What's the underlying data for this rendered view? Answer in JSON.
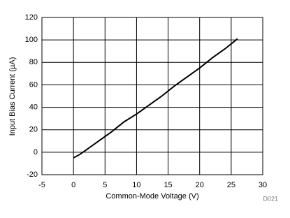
{
  "chart_data": {
    "type": "line",
    "xlabel": "Common-Mode Voltage (V)",
    "ylabel": "Input Bias Current (µA)",
    "note": "D021",
    "x": [
      0,
      1,
      2,
      4,
      6,
      8,
      10,
      12,
      14,
      16,
      18,
      20,
      22,
      24,
      26
    ],
    "series": [
      {
        "color": "#000000",
        "values": [
          -5,
          -2,
          2,
          10,
          18,
          27,
          34,
          42,
          50,
          59,
          67,
          75,
          84,
          92,
          101
        ]
      }
    ],
    "xlim": [
      -5,
      30
    ],
    "xticks": [
      -5,
      0,
      5,
      10,
      15,
      20,
      25,
      30
    ],
    "ylim": [
      -20,
      120
    ],
    "yticks": [
      -20,
      0,
      20,
      40,
      60,
      80,
      100,
      120
    ],
    "grid": true
  }
}
